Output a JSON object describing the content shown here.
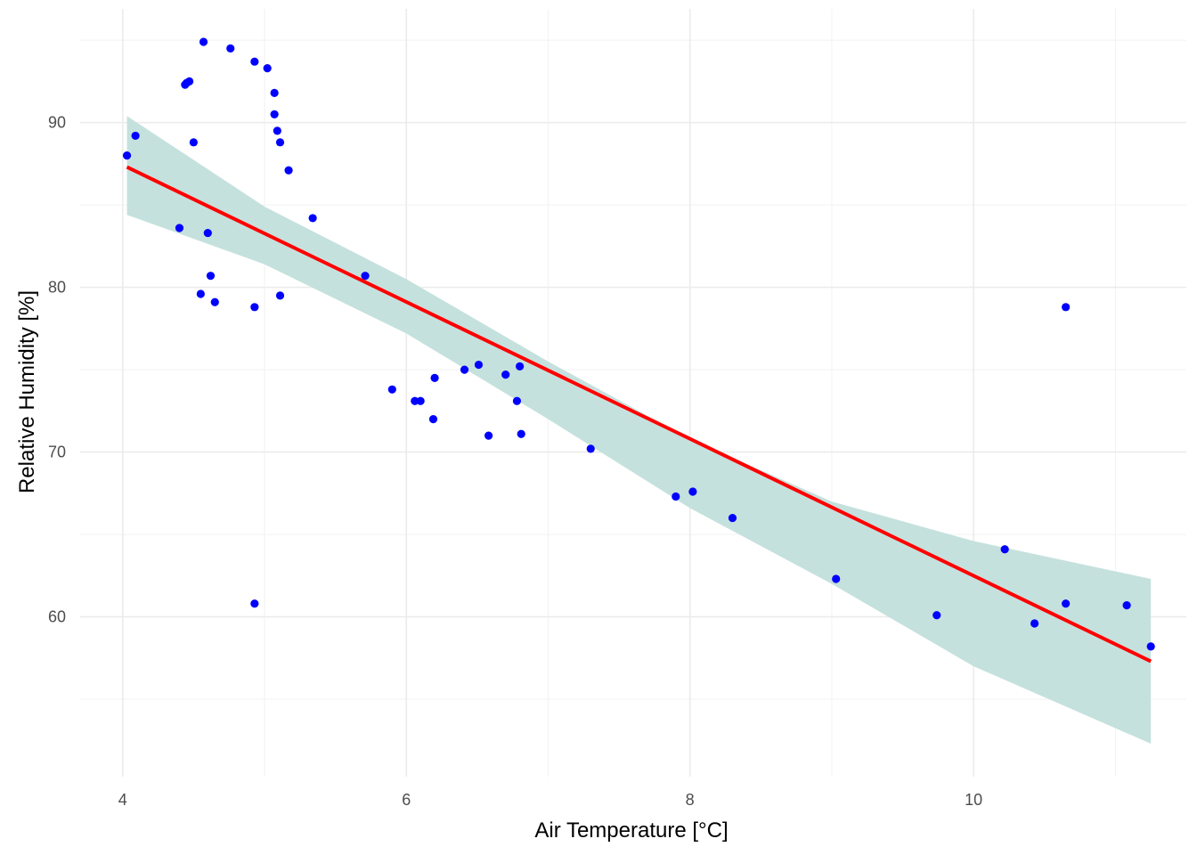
{
  "chart_data": {
    "type": "scatter",
    "xlabel": "Air Temperature [°C]",
    "ylabel": "Relative Humidity [%]",
    "xlim": [
      3.7,
      11.5
    ],
    "ylim": [
      50.3,
      96.9
    ],
    "x_ticks": [
      4,
      6,
      8,
      10
    ],
    "x_tick_labels": [
      "4",
      "6",
      "8",
      "10"
    ],
    "x_minor_ticks": [
      5,
      7,
      9,
      11
    ],
    "y_ticks": [
      60,
      70,
      80,
      90
    ],
    "y_tick_labels": [
      "60",
      "70",
      "80",
      "90"
    ],
    "y_minor_ticks": [
      55,
      65,
      75,
      85,
      95
    ],
    "grid": true,
    "legend": "none",
    "series": [
      {
        "type": "scatter",
        "color": "#0000ff",
        "points": [
          [
            4.03,
            88.0
          ],
          [
            4.09,
            89.2
          ],
          [
            4.4,
            83.6
          ],
          [
            4.44,
            92.3
          ],
          [
            4.45,
            92.4
          ],
          [
            4.47,
            92.5
          ],
          [
            4.5,
            88.8
          ],
          [
            4.55,
            79.6
          ],
          [
            4.57,
            94.9
          ],
          [
            4.6,
            83.3
          ],
          [
            4.62,
            80.7
          ],
          [
            4.65,
            79.1
          ],
          [
            4.76,
            94.5
          ],
          [
            4.93,
            93.7
          ],
          [
            4.93,
            78.8
          ],
          [
            4.93,
            60.8
          ],
          [
            5.02,
            93.3
          ],
          [
            5.07,
            91.8
          ],
          [
            5.07,
            90.5
          ],
          [
            5.09,
            89.5
          ],
          [
            5.11,
            88.8
          ],
          [
            5.11,
            79.5
          ],
          [
            5.17,
            87.1
          ],
          [
            5.34,
            84.2
          ],
          [
            5.71,
            80.7
          ],
          [
            5.9,
            73.8
          ],
          [
            6.06,
            73.1
          ],
          [
            6.1,
            73.1
          ],
          [
            6.19,
            72.0
          ],
          [
            6.2,
            74.5
          ],
          [
            6.41,
            75.0
          ],
          [
            6.51,
            75.3
          ],
          [
            6.58,
            71.0
          ],
          [
            6.7,
            74.7
          ],
          [
            6.78,
            73.1
          ],
          [
            6.8,
            75.2
          ],
          [
            6.81,
            71.1
          ],
          [
            7.3,
            70.2
          ],
          [
            7.9,
            67.3
          ],
          [
            8.02,
            67.6
          ],
          [
            8.3,
            66.0
          ],
          [
            9.03,
            62.3
          ],
          [
            9.74,
            60.1
          ],
          [
            10.22,
            64.1
          ],
          [
            10.43,
            59.6
          ],
          [
            10.65,
            78.8
          ],
          [
            10.65,
            60.8
          ],
          [
            11.08,
            60.7
          ],
          [
            11.25,
            58.2
          ]
        ]
      },
      {
        "type": "line",
        "color": "#ff0000",
        "points": [
          [
            4.03,
            87.3
          ],
          [
            11.25,
            57.3
          ]
        ]
      },
      {
        "type": "area",
        "color": "#c5e1dd",
        "upper": [
          [
            4.03,
            90.4
          ],
          [
            5.0,
            84.9
          ],
          [
            6.0,
            80.5
          ],
          [
            7.0,
            75.5
          ],
          [
            8.0,
            70.8
          ],
          [
            9.0,
            67.0
          ],
          [
            10.0,
            64.6
          ],
          [
            11.25,
            62.3
          ]
        ],
        "lower": [
          [
            4.03,
            84.4
          ],
          [
            5.0,
            81.4
          ],
          [
            6.0,
            77.2
          ],
          [
            7.0,
            72.0
          ],
          [
            8.0,
            66.6
          ],
          [
            9.0,
            62.0
          ],
          [
            10.0,
            57.0
          ],
          [
            11.25,
            52.3
          ]
        ]
      }
    ]
  }
}
